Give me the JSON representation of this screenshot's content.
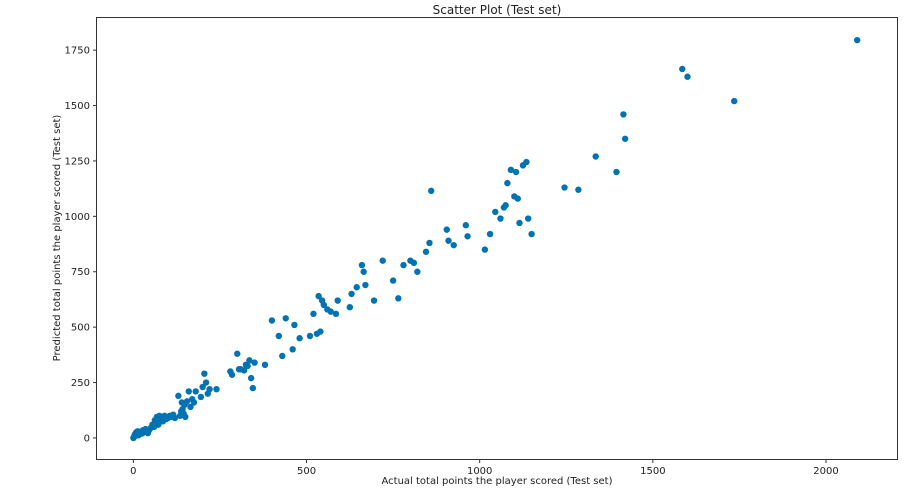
{
  "chart_data": {
    "type": "scatter",
    "title": "Scatter Plot (Test set)",
    "xlabel": "Actual total points the player scored (Test set)",
    "ylabel": "Predicted total points the player scored (Test set)",
    "xlim": [
      -105,
      2205
    ],
    "ylim": [
      -95,
      1895
    ],
    "xticks": [
      0,
      500,
      1000,
      1500,
      2000
    ],
    "yticks": [
      0,
      250,
      500,
      750,
      1000,
      1250,
      1500,
      1750
    ],
    "grid": false,
    "marker_color": "#0173b2",
    "series": [
      {
        "x": [
          0,
          2,
          4,
          6,
          8,
          10,
          12,
          15,
          18,
          20,
          25,
          28,
          30,
          35,
          40,
          42,
          45,
          50,
          55,
          60,
          62,
          65,
          68,
          70,
          72,
          75,
          80,
          85,
          90,
          95,
          100,
          105,
          110,
          115,
          120,
          130,
          135,
          138,
          140,
          142,
          145,
          148,
          150,
          155,
          160,
          165,
          170,
          175,
          180,
          195,
          200,
          205,
          210,
          215,
          220,
          240,
          280,
          285,
          300,
          305,
          310,
          320,
          325,
          330,
          335,
          340,
          345,
          350,
          380,
          400,
          420,
          430,
          440,
          460,
          465,
          480,
          510,
          520,
          530,
          535,
          540,
          545,
          550,
          560,
          570,
          585,
          590,
          625,
          630,
          645,
          660,
          665,
          670,
          695,
          720,
          750,
          765,
          780,
          800,
          810,
          820,
          845,
          855,
          860,
          905,
          910,
          925,
          960,
          965,
          1015,
          1030,
          1045,
          1060,
          1070,
          1075,
          1080,
          1090,
          1100,
          1105,
          1110,
          1115,
          1125,
          1135,
          1140,
          1150,
          1245,
          1285,
          1335,
          1395,
          1415,
          1420,
          1585,
          1600,
          1735,
          2090
        ],
        "y": [
          0,
          5,
          15,
          10,
          25,
          20,
          30,
          12,
          18,
          28,
          20,
          35,
          25,
          40,
          30,
          22,
          35,
          45,
          60,
          50,
          80,
          70,
          95,
          90,
          60,
          100,
          80,
          75,
          100,
          85,
          90,
          100,
          95,
          105,
          90,
          190,
          100,
          120,
          160,
          130,
          110,
          150,
          95,
          165,
          210,
          140,
          175,
          160,
          210,
          185,
          230,
          290,
          250,
          200,
          220,
          220,
          300,
          285,
          380,
          310,
          310,
          305,
          330,
          325,
          350,
          270,
          225,
          340,
          330,
          530,
          460,
          370,
          540,
          400,
          510,
          450,
          460,
          560,
          470,
          640,
          480,
          620,
          600,
          580,
          570,
          560,
          620,
          590,
          650,
          680,
          780,
          750,
          690,
          620,
          800,
          710,
          630,
          780,
          800,
          790,
          750,
          840,
          880,
          1115,
          940,
          890,
          870,
          960,
          910,
          850,
          920,
          1020,
          990,
          1040,
          1050,
          1150,
          1210,
          1090,
          1200,
          1080,
          970,
          1230,
          1245,
          990,
          920,
          1130,
          1120,
          1270,
          1200,
          1460,
          1350,
          1665,
          1630,
          1520,
          1795
        ]
      }
    ]
  }
}
